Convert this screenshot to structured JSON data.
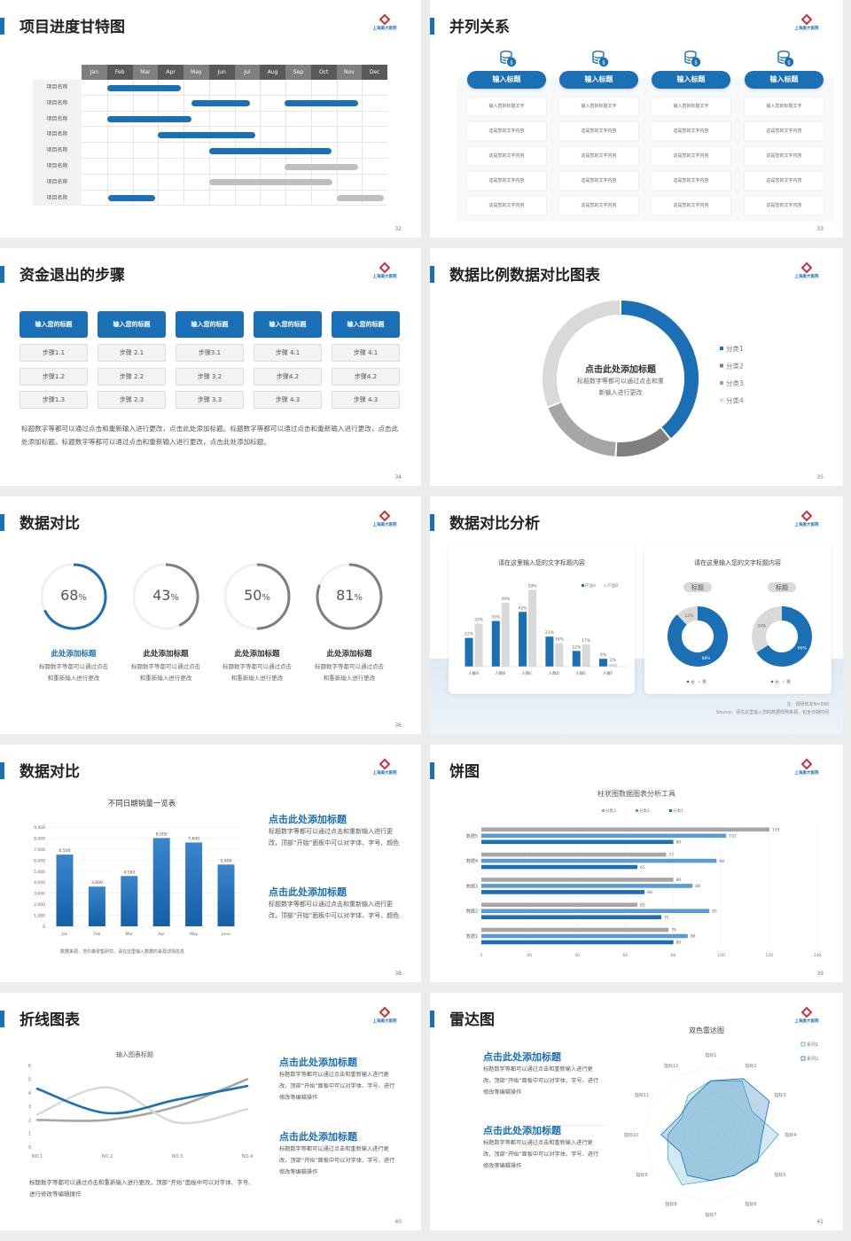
{
  "logo_text": "上海美大医院",
  "colors": {
    "accent": "#1a6fb5",
    "mid_blue": "#5b9bd5",
    "gray": "#bfbfbf",
    "light_gray": "#d9d9d9",
    "dark_gray": "#7f7f7f"
  },
  "s32": {
    "title": "项目进度甘特图",
    "page": "32",
    "months": [
      "Jan",
      "Feb",
      "Mar",
      "Apr",
      "May",
      "Jun",
      "Jul",
      "Aug",
      "Sep",
      "Oct",
      "Nov",
      "Dec"
    ],
    "rows": [
      {
        "label": "项目名称",
        "bars": [
          {
            "start": 1.0,
            "end": 3.9,
            "color": "blue"
          }
        ]
      },
      {
        "label": "项目名称",
        "bars": [
          {
            "start": 4.3,
            "end": 6.6,
            "color": "blue"
          },
          {
            "start": 7.95,
            "end": 10.85,
            "color": "blue"
          }
        ]
      },
      {
        "label": "项目名称",
        "bars": [
          {
            "start": 1.0,
            "end": 4.3,
            "color": "blue"
          }
        ]
      },
      {
        "label": "项目名称",
        "bars": [
          {
            "start": 3.0,
            "end": 6.8,
            "color": "blue"
          }
        ]
      },
      {
        "label": "项目名称",
        "bars": [
          {
            "start": 5.0,
            "end": 9.8,
            "color": "blue"
          }
        ]
      },
      {
        "label": "项目名称",
        "bars": [
          {
            "start": 7.95,
            "end": 10.85,
            "color": "gray"
          }
        ]
      },
      {
        "label": "项目名称",
        "bars": [
          {
            "start": 5.0,
            "end": 9.85,
            "color": "gray"
          }
        ]
      },
      {
        "label": "项目名称",
        "bars": [
          {
            "start": 1.05,
            "end": 2.9,
            "color": "blue"
          },
          {
            "start": 10.0,
            "end": 11.85,
            "color": "gray"
          }
        ]
      }
    ]
  },
  "s33": {
    "title": "并列关系",
    "page": "33",
    "columns": [
      {
        "header": "输入标题",
        "cells": [
          "输入您的标题文字",
          "这是您的文字内容",
          "这是您的文字内容",
          "这是您的文字内容",
          "这是您的文字内容"
        ]
      },
      {
        "header": "输入标题",
        "cells": [
          "输入您的标题文字",
          "这是您的文字内容",
          "这是您的文字内容",
          "这是您的文字内容",
          "这是您的文字内容"
        ]
      },
      {
        "header": "输入标题",
        "cells": [
          "输入您的标题文字",
          "这是您的文字内容",
          "这是您的文字内容",
          "这是您的文字内容",
          "这是您的文字内容"
        ]
      },
      {
        "header": "输入标题",
        "cells": [
          "输入您的标题文字",
          "这是您的文字内容",
          "这是您的文字内容",
          "这是您的文字内容",
          "这是您的文字内容"
        ]
      }
    ]
  },
  "s34": {
    "title": "资金退出的步骤",
    "page": "34",
    "columns": [
      {
        "header": "输入您的标题",
        "steps": [
          "步骤1.1",
          "步骤1.2",
          "步骤1.3"
        ]
      },
      {
        "header": "输入您的标题",
        "steps": [
          "步骤 2.1",
          "步骤 2.2",
          "步骤 2.3"
        ]
      },
      {
        "header": "输入您的标题",
        "steps": [
          "步骤3.1",
          "步骤 3.2",
          "步骤 3.3"
        ]
      },
      {
        "header": "输入您的标题",
        "steps": [
          "步骤 4.1",
          "步骤4.2",
          "步骤 4.3"
        ]
      },
      {
        "header": "输入您的标题",
        "steps": [
          "步骤 4.1",
          "步骤4.2",
          "步骤 4.3"
        ]
      }
    ],
    "paragraph": "标题数字等都可以通过点击和重新输入进行更改，点击此处添加标题。标题数字等都可以通过点击和重新输入进行更改，点击此处添加标题。标题数字等都可以通过点击和重新输入进行更改，点击此处添加标题。"
  },
  "s35": {
    "title": "数据比例数据对比图表",
    "page": "35",
    "center_title": "点击此处添加标题",
    "center_text": "标题数字等都可以通过点击和重新输入进行更改"
  },
  "s36": {
    "title": "数据对比",
    "page": "36",
    "items": [
      {
        "value": 68,
        "label": "68",
        "unit": "%",
        "heading": "此处添加标题",
        "text": "标题数字等都可以通过点击和重新输入进行更改",
        "color": "#1a6fb5"
      },
      {
        "value": 43,
        "label": "43",
        "unit": "%",
        "heading": "此处添加标题",
        "text": "标题数字等都可以通过点击和重新输入进行更改",
        "color": "#7f7f7f"
      },
      {
        "value": 50,
        "label": "50",
        "unit": "%",
        "heading": "此处添加标题",
        "text": "标题数字等都可以通过点击和重新输入进行更改",
        "color": "#7f7f7f"
      },
      {
        "value": 81,
        "label": "81",
        "unit": "%",
        "heading": "此处添加标题",
        "text": "标题数字等都可以通过点击和重新输入进行更改",
        "color": "#7f7f7f"
      }
    ]
  },
  "s37": {
    "title": "数据对比分析",
    "page": "37",
    "note": "注：调研样本N=500",
    "source": "Source：请在这里输入您的数据样例来源，包含日期时间",
    "pill_labels": [
      "标题",
      "标题"
    ]
  },
  "s38": {
    "title": "数据对比",
    "page": "38",
    "blocks": [
      {
        "heading": "点击此处添加标题",
        "text": "标题数字等都可以通过点击和重新输入进行更改，顶部“开始”面板中可以对字体、字号、颜色"
      },
      {
        "heading": "点击此处添加标题",
        "text": "标题数字等都可以通过点击和重新输入进行更改，顶部“开始”面板中可以对字体、字号、颜色"
      }
    ],
    "source": "数据来源：范尔森零售研究，请在这里输入数据的来源详情信息"
  },
  "s39": {
    "title": "饼图",
    "page": "39"
  },
  "s40": {
    "title": "折线图表",
    "page": "40",
    "caption": "标题数字等都可以通过点击和重新输入进行更改，顶部“开始”面板中可以对字体、字号、进行修改等编辑操作",
    "blocks": [
      {
        "heading": "点击此处添加标题",
        "text": "标题数字等都可以通过点击和重新输入进行更改，顶部“开始”面板中可以对字体、字号、进行修改等编辑操作"
      },
      {
        "heading": "点击此处添加标题",
        "text": "标题数字等都可以通过点击和重新输入进行更改，顶部“开始”面板中可以对字体、字号、进行修改等编辑操作"
      }
    ]
  },
  "s41": {
    "title": "雷达图",
    "page": "41",
    "blocks": [
      {
        "heading": "点击此处添加标题",
        "text": "标题数字等都可以通过点击和重新输入进行更改，顶部“开始”面板中可以对字体、字号、进行修改等编辑操作"
      },
      {
        "heading": "点击此处添加标题",
        "text": "标题数字等都可以通过点击和重新输入进行更改，顶部“开始”面板中可以对字体、字号、进行修改等编辑操作"
      }
    ]
  },
  "chart_data": [
    {
      "type": "pie",
      "slide": "35",
      "donut": true,
      "categories": [
        "分类1",
        "分类2",
        "分类3",
        "分类4"
      ],
      "values": [
        39,
        12,
        18,
        31
      ],
      "colors": [
        "#1a6fb5",
        "#7f7f7f",
        "#a6a6a6",
        "#d9d9d9"
      ],
      "legend": "right"
    },
    {
      "type": "bar",
      "slide": "37",
      "title": "请在这里输入您的文字标题内容",
      "categories": [
        "人群A",
        "人群B",
        "人群C",
        "人群D",
        "人群E",
        "人群F"
      ],
      "series": [
        {
          "name": "产品A",
          "values": [
            22,
            35,
            42,
            23,
            12,
            6
          ],
          "labels": [
            "22%",
            "35%",
            "42%",
            "23%",
            "12%",
            "6%"
          ],
          "color": "#1a6fb5"
        },
        {
          "name": "产品B",
          "values": [
            33,
            49,
            59,
            18,
            17,
            2
          ],
          "labels": [
            "33%",
            "49%",
            "59%",
            "18%",
            "17%",
            "2%"
          ],
          "color": "#d9d9d9"
        }
      ],
      "legend": "top-right"
    },
    {
      "type": "pie",
      "slide": "37",
      "title": "请在这里输入您的文字标题内容",
      "donut": true,
      "charts": [
        {
          "categories": [
            "女",
            "男"
          ],
          "values": [
            88,
            12
          ],
          "labels": [
            "88%",
            "12%"
          ]
        },
        {
          "categories": [
            "女",
            "男"
          ],
          "values": [
            66,
            34
          ],
          "labels": [
            "66%",
            "34%"
          ]
        }
      ],
      "colors": [
        "#1a6fb5",
        "#d9d9d9"
      ],
      "legend": "bottom"
    },
    {
      "type": "bar",
      "slide": "38",
      "title": "不同日期销量一览表",
      "categories": [
        "Jan",
        "Feb",
        "Mar",
        "Apr",
        "May",
        "June"
      ],
      "values": [
        6500,
        3600,
        4560,
        8000,
        7600,
        5600
      ],
      "labels": [
        "6,500",
        "3,600",
        "4,560",
        "8,000",
        "7,600",
        "5,600"
      ],
      "ylim": [
        0,
        9000
      ],
      "yticks": [
        "0",
        "1,000",
        "2,000",
        "3,000",
        "4,000",
        "5,000",
        "6,000",
        "7,000",
        "8,000",
        "9,000"
      ],
      "grid": true
    },
    {
      "type": "bar",
      "orientation": "horizontal",
      "slide": "39",
      "title": "柱状图数据图表分析工具",
      "categories": [
        "数据1",
        "数据2",
        "数据3",
        "数据4",
        "数据5"
      ],
      "series": [
        {
          "name": "分类3",
          "values": [
            78,
            65,
            80,
            77,
            120
          ],
          "color": "#a6a6a6"
        },
        {
          "name": "分类2",
          "values": [
            86,
            95,
            88,
            98,
            102
          ],
          "color": "#5b9bd5"
        },
        {
          "name": "分类1",
          "values": [
            80,
            75,
            68,
            65,
            80
          ],
          "color": "#1a6fb5"
        }
      ],
      "xlim": [
        0,
        140
      ],
      "xticks": [
        "0",
        "20",
        "40",
        "60",
        "80",
        "100",
        "120",
        "140"
      ],
      "legend": "top",
      "grid": true
    },
    {
      "type": "line",
      "slide": "40",
      "title": "输入图表标题",
      "categories": [
        "NO.1",
        "NO.2",
        "NO.3",
        "NO.4"
      ],
      "series": [
        {
          "values": [
            4.3,
            2.5,
            3.5,
            4.5
          ],
          "color": "#1a6fb5"
        },
        {
          "values": [
            2.4,
            4.4,
            1.8,
            2.8
          ],
          "color": "#d9d9d9"
        },
        {
          "values": [
            2.0,
            2.0,
            3.0,
            5.0
          ],
          "color": "#a6a6a6"
        }
      ],
      "ylim": [
        0,
        6
      ],
      "yticks": [
        "0",
        "1",
        "2",
        "3",
        "4",
        "5",
        "6"
      ]
    },
    {
      "type": "radar",
      "slide": "41",
      "title": "双色雷达图",
      "axes": [
        "指标1",
        "指标2",
        "指标3",
        "指标4",
        "指标5",
        "指标6",
        "指标7",
        "指标8",
        "指标9",
        "指标10",
        "指标11",
        "指标12"
      ],
      "series": [
        {
          "name": "系列1",
          "values": [
            4.0,
            4.6,
            3.5,
            5.0,
            3.9,
            3.5,
            3.4,
            4.3,
            3.7,
            3.2,
            2.5,
            3.4
          ],
          "color": "#4bacc6"
        },
        {
          "name": "系列2",
          "values": [
            4.0,
            4.8,
            5.0,
            3.8,
            4.0,
            3.5,
            3.4,
            3.5,
            2.6,
            3.7,
            2.7,
            3.0
          ],
          "color": "#1a6fb5"
        }
      ],
      "rlim": [
        0,
        5
      ],
      "legend": "top-right"
    }
  ]
}
